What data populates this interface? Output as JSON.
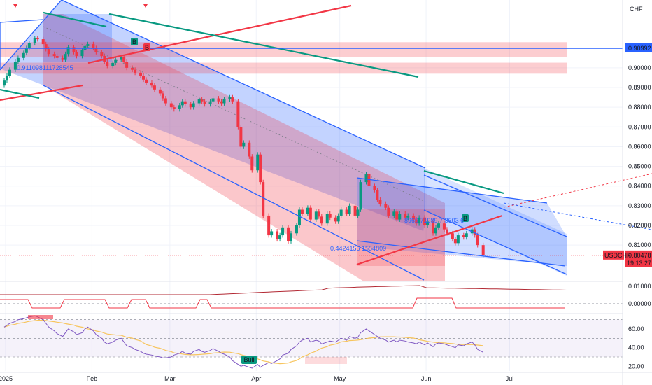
{
  "chart_data": {
    "type": "candlestick",
    "symbol": "USDCHF",
    "currency": "CHF",
    "last_price": "0.80478",
    "countdown": "19:13:27",
    "horizontal_level": "0.90992",
    "annotations": {
      "upper_fib": "0.911098111728545",
      "lower_fib": "0.4424156 1554809",
      "mid_fib": "8969 71989 7 3603 6",
      "signal_B": "B",
      "bull_label": "Bull"
    },
    "y_axis_price": {
      "min": 0.793,
      "max": 0.933,
      "ticks": [
        "0.90000",
        "0.89000",
        "0.88000",
        "0.87000",
        "0.86000",
        "0.85000",
        "0.84000",
        "0.83000",
        "0.82000",
        "0.81000"
      ]
    },
    "y_axis_osc": {
      "ticks": [
        "0.01000",
        "0.00000"
      ]
    },
    "y_axis_rsi": {
      "min": 15,
      "max": 75,
      "ticks": [
        "60.00",
        "40.00",
        "20.00"
      ]
    },
    "x_axis_labels": [
      "2025",
      "Feb",
      "Mar",
      "Apr",
      "May",
      "Jun",
      "Jul"
    ],
    "x_axis_dates": [
      "2025-01-01",
      "2025-02-01",
      "2025-03-01",
      "2025-04-01",
      "2025-05-01",
      "2025-06-01",
      "2025-07-01"
    ],
    "x_axis_range": [
      "2024-12-31",
      "2025-07-27"
    ],
    "candles": {
      "start_date": "2024-12-31",
      "open_first": 0.891,
      "close": [
        0.8935,
        0.896,
        0.899,
        0.903,
        0.905,
        0.9075,
        0.91,
        0.9125,
        0.915,
        0.9145,
        0.912,
        0.9095,
        0.907,
        0.906,
        0.905,
        0.904,
        0.907,
        0.9105,
        0.908,
        0.906,
        0.909,
        0.911,
        0.912,
        0.91,
        0.908,
        0.906,
        0.903,
        0.901,
        0.9025,
        0.904,
        0.9055,
        0.903,
        0.9,
        0.899,
        0.8975,
        0.896,
        0.894,
        0.8925,
        0.891,
        0.889,
        0.887,
        0.8845,
        0.882,
        0.88,
        0.879,
        0.881,
        0.883,
        0.8815,
        0.88,
        0.882,
        0.884,
        0.883,
        0.8815,
        0.883,
        0.8845,
        0.883,
        0.882,
        0.884,
        0.885,
        0.883,
        0.87,
        0.86,
        0.862,
        0.855,
        0.848,
        0.856,
        0.842,
        0.825,
        0.815,
        0.817,
        0.813,
        0.815,
        0.819,
        0.812,
        0.816,
        0.82,
        0.828,
        0.826,
        0.829,
        0.823,
        0.827,
        0.8245,
        0.821,
        0.826,
        0.824,
        0.822,
        0.825,
        0.828,
        0.826,
        0.83,
        0.825,
        0.828,
        0.842,
        0.846,
        0.84,
        0.838,
        0.833,
        0.831,
        0.829,
        0.825,
        0.827,
        0.823,
        0.826,
        0.824,
        0.825,
        0.823,
        0.821,
        0.824,
        0.82,
        0.822,
        0.816,
        0.819,
        0.821,
        0.818,
        0.816,
        0.813,
        0.811,
        0.815,
        0.814,
        0.816,
        0.818,
        0.815,
        0.81,
        0.805
      ]
    },
    "rsi": [
      62,
      64,
      66,
      68,
      70,
      71,
      72,
      73,
      74,
      73,
      70,
      66,
      62,
      58,
      55,
      52,
      56,
      60,
      57,
      54,
      56,
      60,
      62,
      58,
      54,
      50,
      46,
      44,
      46,
      48,
      50,
      46,
      42,
      40,
      38,
      36,
      34,
      33,
      32,
      31,
      30,
      29,
      29,
      30,
      32,
      34,
      36,
      34,
      33,
      36,
      38,
      36,
      35,
      37,
      39,
      36,
      34,
      33,
      30,
      26,
      22,
      20,
      21,
      19,
      18,
      22,
      19,
      21,
      24,
      23,
      26,
      28,
      32,
      34,
      38,
      42,
      46,
      48,
      50,
      46,
      48,
      47,
      44,
      46,
      47,
      46,
      48,
      50,
      48,
      52,
      50,
      51,
      56,
      60,
      58,
      54,
      52,
      50,
      48,
      46,
      48,
      46,
      48,
      47,
      46,
      45,
      44,
      46,
      43,
      45,
      41,
      44,
      45,
      44,
      43,
      41,
      40,
      43,
      42,
      44,
      46,
      43,
      38,
      35
    ],
    "zones": {
      "red_top": [
        0.913,
        0.9055
      ],
      "red_mid": [
        0.9026,
        0.897
      ]
    },
    "title": "",
    "xlabel": "",
    "ylabel": ""
  }
}
